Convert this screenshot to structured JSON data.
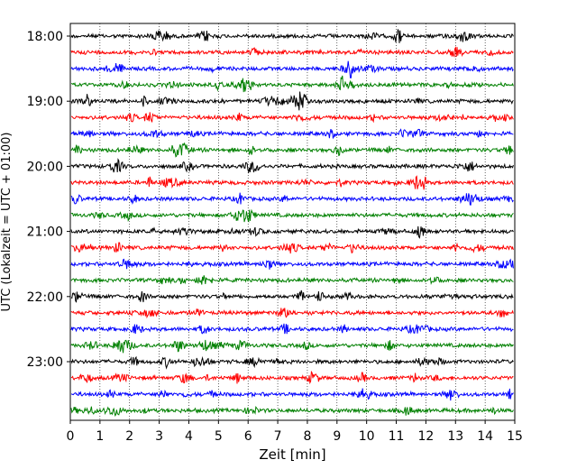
{
  "chart_data": {
    "type": "line",
    "title": "",
    "xlabel": "Zeit  [min]",
    "ylabel": "UTC (Lokalzeit = UTC + 01:00)",
    "xlim": [
      0,
      15
    ],
    "x_ticks": [
      "0",
      "1",
      "2",
      "3",
      "4",
      "5",
      "6",
      "7",
      "8",
      "9",
      "10",
      "11",
      "12",
      "13",
      "14",
      "15"
    ],
    "y_ticks": [
      "18:00",
      "19:00",
      "20:00",
      "21:00",
      "22:00",
      "23:00"
    ],
    "grid": "vertical dotted lines at each minute",
    "trace_interval_min": 15,
    "trace_colors_cycle": [
      "#000000",
      "#ff0000",
      "#0000ff",
      "#008000"
    ],
    "traces": [
      {
        "start": "18:00",
        "color": "#000000"
      },
      {
        "start": "18:15",
        "color": "#ff0000"
      },
      {
        "start": "18:30",
        "color": "#0000ff"
      },
      {
        "start": "18:45",
        "color": "#008000"
      },
      {
        "start": "19:00",
        "color": "#000000"
      },
      {
        "start": "19:15",
        "color": "#ff0000"
      },
      {
        "start": "19:30",
        "color": "#0000ff"
      },
      {
        "start": "19:45",
        "color": "#008000"
      },
      {
        "start": "20:00",
        "color": "#000000"
      },
      {
        "start": "20:15",
        "color": "#ff0000"
      },
      {
        "start": "20:30",
        "color": "#0000ff"
      },
      {
        "start": "20:45",
        "color": "#008000"
      },
      {
        "start": "21:00",
        "color": "#000000"
      },
      {
        "start": "21:15",
        "color": "#ff0000"
      },
      {
        "start": "21:30",
        "color": "#0000ff"
      },
      {
        "start": "21:45",
        "color": "#008000"
      },
      {
        "start": "22:00",
        "color": "#000000"
      },
      {
        "start": "22:15",
        "color": "#ff0000"
      },
      {
        "start": "22:30",
        "color": "#0000ff"
      },
      {
        "start": "22:45",
        "color": "#008000"
      },
      {
        "start": "23:00",
        "color": "#000000"
      },
      {
        "start": "23:15",
        "color": "#ff0000"
      },
      {
        "start": "23:30",
        "color": "#0000ff"
      },
      {
        "start": "23:45",
        "color": "#008000"
      }
    ]
  }
}
